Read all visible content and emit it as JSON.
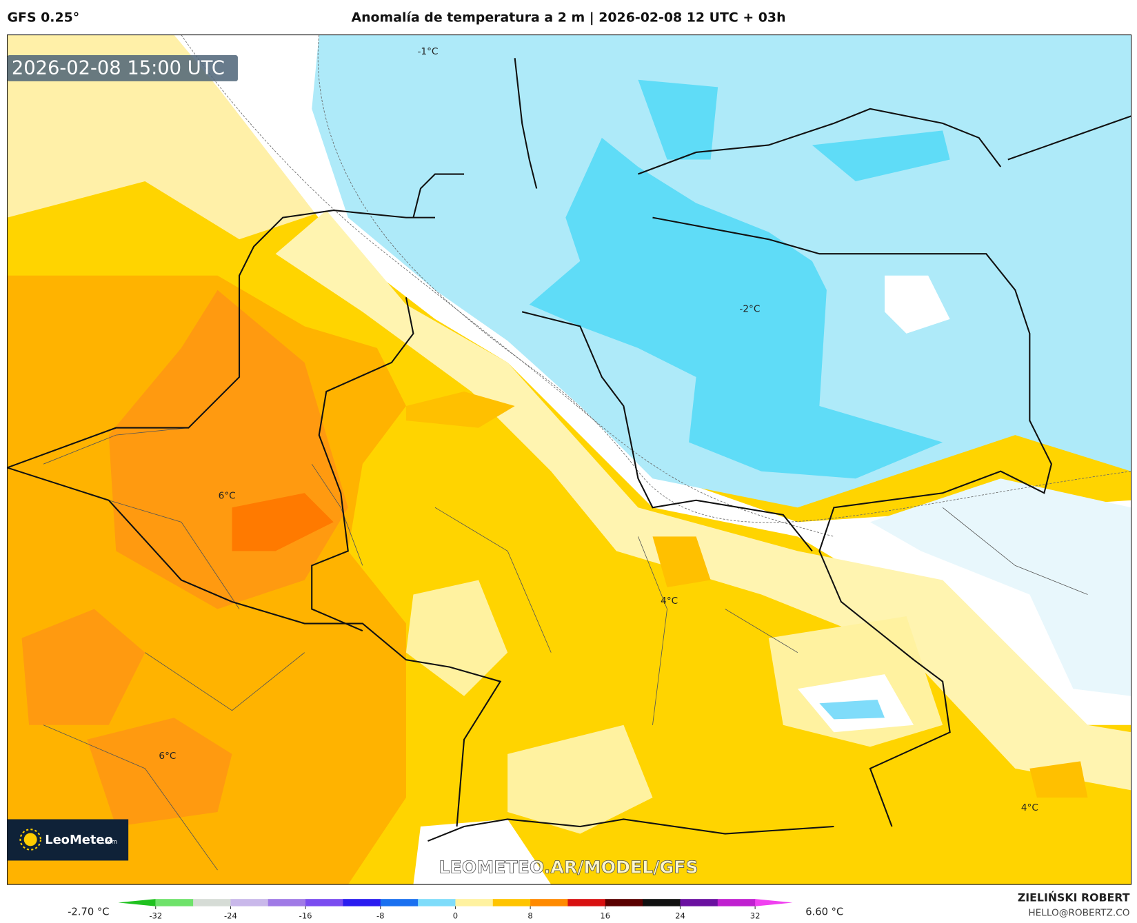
{
  "header": {
    "model": "GFS 0.25°",
    "title": "Anomalía de temperatura a 2 m | 2026-02-08 12 UTC + 03h"
  },
  "map": {
    "valid_time": "2026-02-08 15:00 UTC",
    "contour_labels": [
      "-1°C",
      "-2°C",
      "6°C",
      "4°C",
      "6°C",
      "4°C"
    ],
    "watermark": "LEOMETEO.AR/MODEL/GFS",
    "logo": {
      "name": "LeoMeteo",
      "suffix": ".com"
    }
  },
  "colorbar": {
    "range": [
      -36,
      36
    ],
    "ticks": [
      -32,
      -24,
      -16,
      -8,
      0,
      8,
      16,
      24,
      32
    ],
    "colors": [
      "#1fc11f",
      "#6ee26a",
      "#d6dcd6",
      "#c9b8ea",
      "#a07ae6",
      "#7a4cf0",
      "#2a1cf0",
      "#1a70f0",
      "#7fdcfa",
      "#fff2a0",
      "#ffc400",
      "#ff8a00",
      "#d81010",
      "#5a0000",
      "#101010",
      "#6a10a0",
      "#c020d0",
      "#f040f0"
    ],
    "min_label": "-2.70 °C",
    "max_label": "6.60 °C"
  },
  "footer": {
    "author": "ZIELIŃSKI ROBERT",
    "email": "HELLO@ROBERTZ.CO"
  }
}
